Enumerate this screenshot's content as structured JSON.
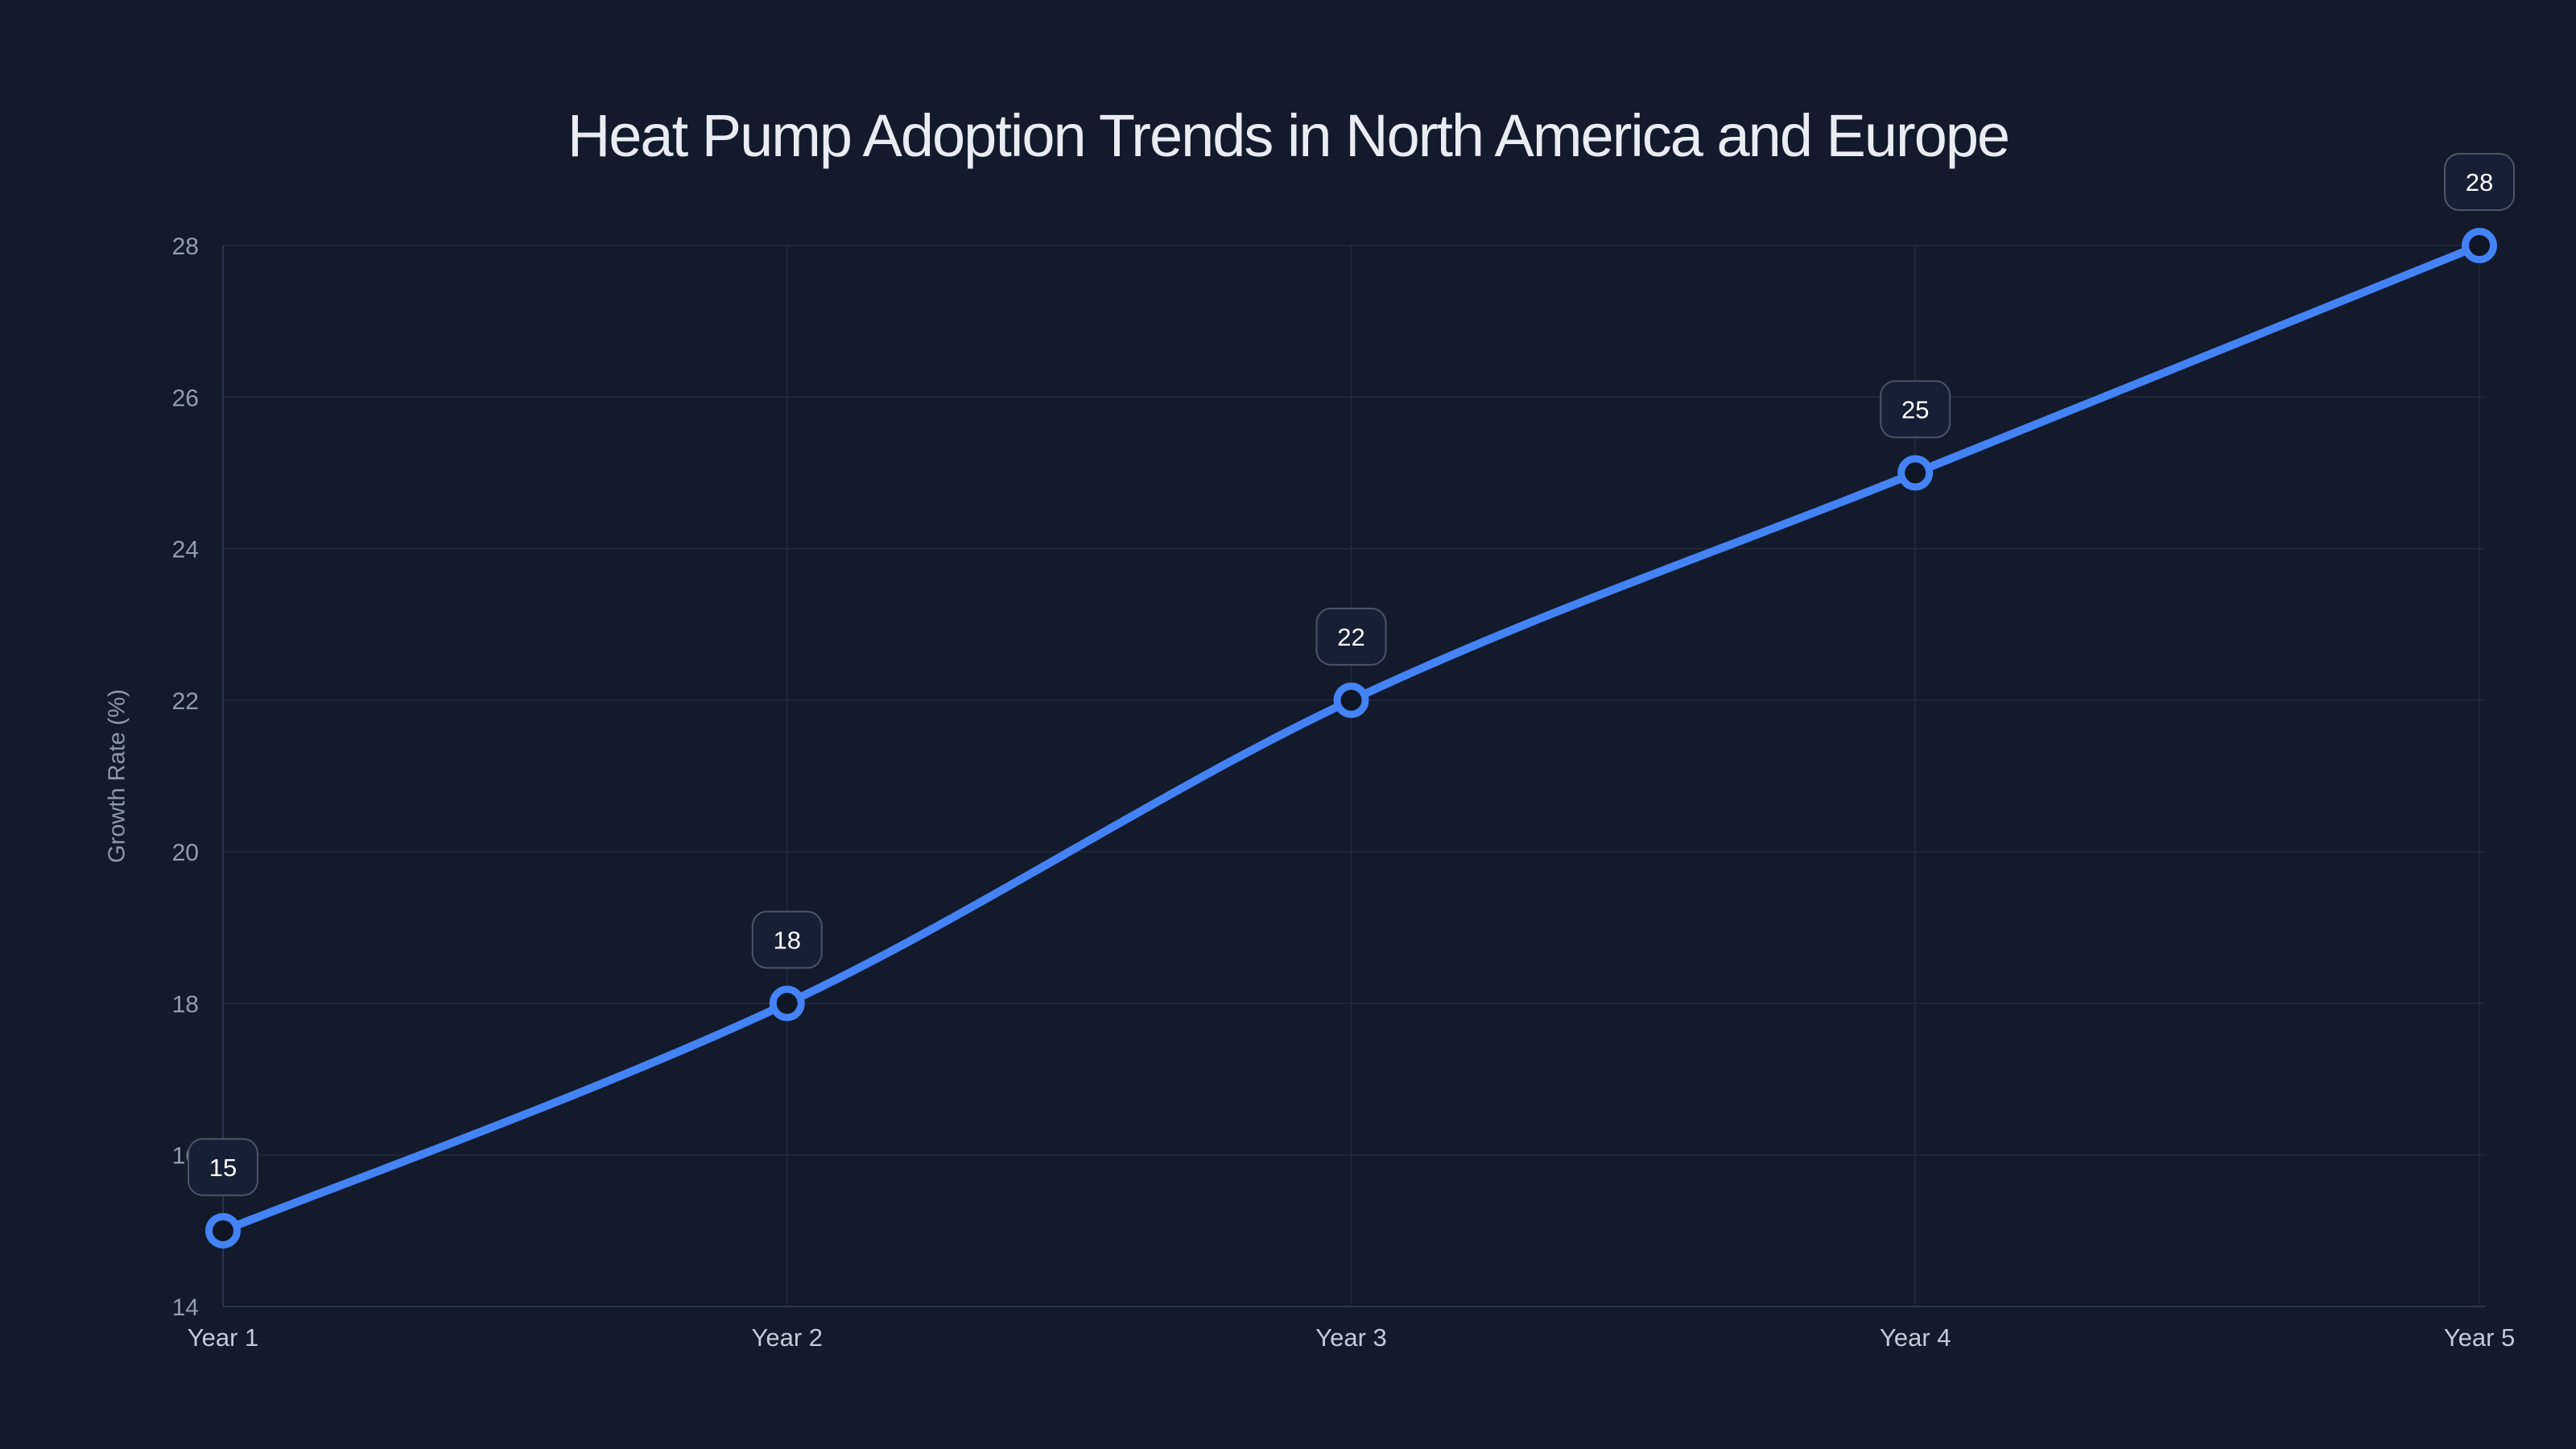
{
  "chart_data": {
    "type": "line",
    "title": "Heat Pump Adoption Trends in North America and Europe",
    "categories": [
      "Year 1",
      "Year 2",
      "Year 3",
      "Year 4",
      "Year 5"
    ],
    "series": [
      {
        "name": "Growth Rate",
        "values": [
          15,
          18,
          22,
          25,
          28
        ]
      }
    ],
    "data_labels": [
      "15",
      "18",
      "22",
      "25",
      "28"
    ],
    "xlabel": "",
    "ylabel": "Growth Rate (%)",
    "ylim": [
      14,
      28
    ],
    "yticks": [
      14,
      16,
      18,
      20,
      22,
      24,
      26,
      28
    ],
    "grid": "on",
    "legend": "none",
    "curve": "smooth",
    "marker_style": "open-circle",
    "colors": {
      "background": "#121a2b",
      "line": "#4483f6",
      "marker_fill": "#0e1626",
      "grid": "#212b3e",
      "axis": "#2a364e",
      "title_text": "#e9edf3",
      "y_tick_text": "#929db0",
      "x_tick_text": "#c3cbd7",
      "label_box_fill": "#161f36",
      "label_box_border": "#4b5568",
      "label_text": "#ffffff"
    }
  }
}
